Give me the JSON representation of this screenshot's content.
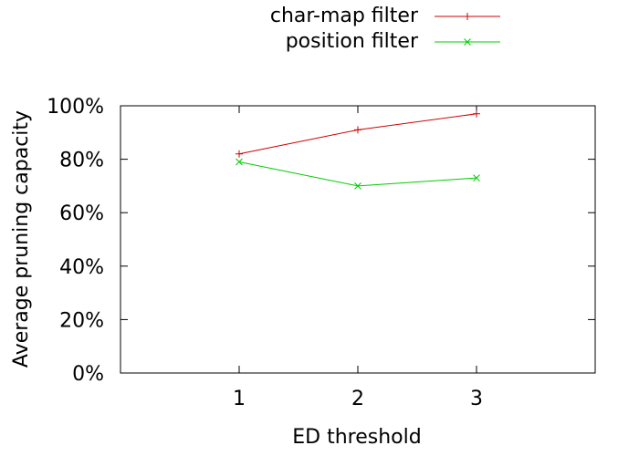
{
  "chart_data": {
    "type": "line",
    "x": [
      1,
      2,
      3
    ],
    "xlim": [
      0,
      4
    ],
    "ylim": [
      0,
      100
    ],
    "xticks": [
      "1",
      "2",
      "3"
    ],
    "yticks": [
      "0%",
      "20%",
      "40%",
      "60%",
      "80%",
      "100%"
    ],
    "xlabel": "ED threshold",
    "ylabel": "Average pruning capacity",
    "legend_position": "top-center, outside plot",
    "grid": false,
    "series": [
      {
        "name": "char-map filter",
        "values": [
          82,
          91,
          97
        ],
        "color": "#cc0000",
        "marker": "plus"
      },
      {
        "name": "position filter",
        "values": [
          79,
          70,
          73
        ],
        "color": "#00cc00",
        "marker": "cross"
      }
    ]
  }
}
